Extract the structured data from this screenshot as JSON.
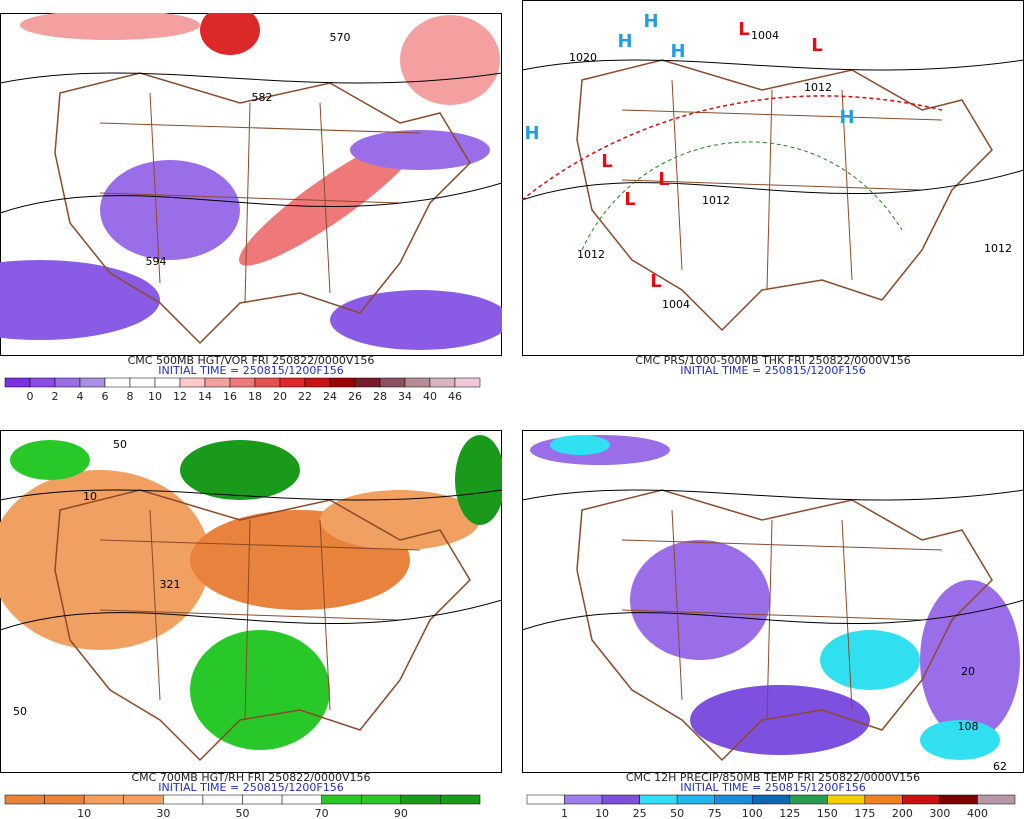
{
  "panels": [
    {
      "title": "CMC 500MB HGT/VOR FRI 250822/0000V156",
      "init_time": "INITIAL TIME = 250815/1200F156",
      "colorbar": {
        "colors": [
          "#7d2ee6",
          "#8a4be8",
          "#9a6ee8",
          "#a98fe6",
          "#ffffff",
          "#ffffff",
          "#ffffff",
          "#fcc8c8",
          "#f5a0a0",
          "#ef7878",
          "#e65050",
          "#dc2828",
          "#c81414",
          "#a00000",
          "#781c2c",
          "#8c5060",
          "#b48c96",
          "#d8b4c0",
          "#f0c8d8"
        ],
        "labels": [
          0,
          2,
          4,
          6,
          8,
          10,
          12,
          14,
          16,
          18,
          20,
          22,
          24,
          26,
          28,
          34,
          40,
          46
        ]
      },
      "map_labels": [
        "570",
        "582",
        "594"
      ]
    },
    {
      "title": "CMC PRS/1000-500MB THK FRI 250822/0000V156",
      "init_time": "INITIAL TIME = 250815/1200F156",
      "map_labels": [
        "1004",
        "1020",
        "1012",
        "1012",
        "1012",
        "1012",
        "1004",
        "L",
        "L",
        "L",
        "L",
        "L",
        "L",
        "H",
        "H",
        "H",
        "H",
        "H"
      ]
    },
    {
      "title": "CMC 700MB HGT/RH FRI 250822/0000V156",
      "init_time": "INITIAL TIME = 250815/1200F156",
      "colorbar": {
        "colors": [
          "#e8823c",
          "#e8823c",
          "#f0a060",
          "#f0a060",
          "#ffffff",
          "#ffffff",
          "#ffffff",
          "#ffffff",
          "#28c828",
          "#28c828",
          "#1a9a1a",
          "#1a9a1a"
        ],
        "labels": [
          10,
          30,
          50,
          70,
          90
        ]
      },
      "map_labels": [
        "50",
        "10",
        "321",
        "50"
      ]
    },
    {
      "title": "CMC 12H PRECIP/850MB TEMP FRI 250822/0000V156",
      "init_time": "INITIAL TIME = 250815/1200F156",
      "colorbar": {
        "colors": [
          "#ffffff",
          "#a080e8",
          "#7d50e0",
          "#30e0f0",
          "#20b8e8",
          "#1890d8",
          "#1068b0",
          "#2a9a50",
          "#f0d000",
          "#f08020",
          "#d01010",
          "#800000",
          "#b898a8"
        ],
        "labels": [
          1,
          10,
          25,
          50,
          75,
          100,
          125,
          150,
          175,
          200,
          300,
          400
        ]
      },
      "map_labels": [
        "20",
        "62",
        "108"
      ]
    }
  ]
}
